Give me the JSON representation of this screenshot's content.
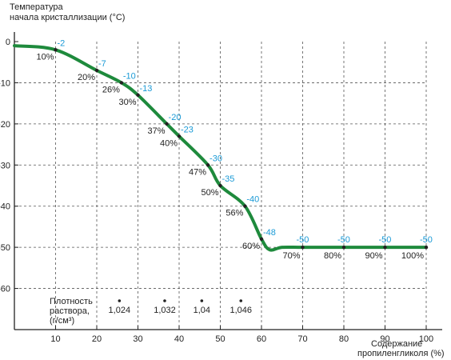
{
  "chart_data": {
    "type": "line",
    "title": "Температура начала кристаллизации (°C)",
    "title_lines": [
      "Температура",
      "начала кристаллизации (°C)"
    ],
    "xlabel_lines": [
      "Содержание",
      "пропиленгликоля (%)"
    ],
    "xlim": [
      0,
      100
    ],
    "ylim": [
      -70,
      0
    ],
    "x_ticks": [
      "10",
      "20",
      "30",
      "40",
      "50",
      "60",
      "70",
      "80",
      "90",
      "100"
    ],
    "y_ticks": [
      "0",
      "-10",
      "-20",
      "-30",
      "-40",
      "-50",
      "-60"
    ],
    "grid": true,
    "colors": {
      "curve": "#1e8a3c",
      "value_labels": "#1a9ad6",
      "axis": "#222222"
    },
    "points": [
      {
        "x": 10,
        "y": -2,
        "value_label": "-2",
        "pct_label": "10%"
      },
      {
        "x": 20,
        "y": -7,
        "value_label": "-7",
        "pct_label": "20%"
      },
      {
        "x": 26,
        "y": -10,
        "value_label": "-10",
        "pct_label": "26%"
      },
      {
        "x": 30,
        "y": -13,
        "value_label": "-13",
        "pct_label": "30%"
      },
      {
        "x": 37,
        "y": -20,
        "value_label": "-20",
        "pct_label": "37%"
      },
      {
        "x": 40,
        "y": -23,
        "value_label": "-23",
        "pct_label": "40%"
      },
      {
        "x": 47,
        "y": -30,
        "value_label": "-30",
        "pct_label": "47%"
      },
      {
        "x": 50,
        "y": -35,
        "value_label": "-35",
        "pct_label": "50%"
      },
      {
        "x": 56,
        "y": -40,
        "value_label": "-40",
        "pct_label": "56%"
      },
      {
        "x": 60,
        "y": -48,
        "value_label": "-48",
        "pct_label": "60%"
      },
      {
        "x": 70,
        "y": -50,
        "value_label": "-50",
        "pct_label": "70%"
      },
      {
        "x": 80,
        "y": -50,
        "value_label": "-50",
        "pct_label": "80%"
      },
      {
        "x": 90,
        "y": -50,
        "value_label": "-50",
        "pct_label": "90%"
      },
      {
        "x": 100,
        "y": -50,
        "value_label": "-50",
        "pct_label": "100%"
      }
    ],
    "curve": [
      [
        0,
        -1
      ],
      [
        10,
        -2
      ],
      [
        20,
        -7
      ],
      [
        26,
        -10
      ],
      [
        30,
        -13
      ],
      [
        37,
        -20
      ],
      [
        40,
        -23
      ],
      [
        47,
        -30
      ],
      [
        50,
        -35
      ],
      [
        56,
        -40
      ],
      [
        60,
        -48
      ],
      [
        62,
        -50.6
      ],
      [
        65,
        -50
      ],
      [
        70,
        -50
      ],
      [
        80,
        -50
      ],
      [
        90,
        -50
      ],
      [
        100,
        -50
      ]
    ],
    "density": {
      "label_lines": [
        "Плотность",
        "раствора,",
        "(г/см³)"
      ],
      "y": -63,
      "items": [
        {
          "x": 25.5,
          "label": "1,024"
        },
        {
          "x": 36.5,
          "label": "1,032"
        },
        {
          "x": 45.5,
          "label": "1,04"
        },
        {
          "x": 55,
          "label": "1,046"
        }
      ]
    }
  }
}
